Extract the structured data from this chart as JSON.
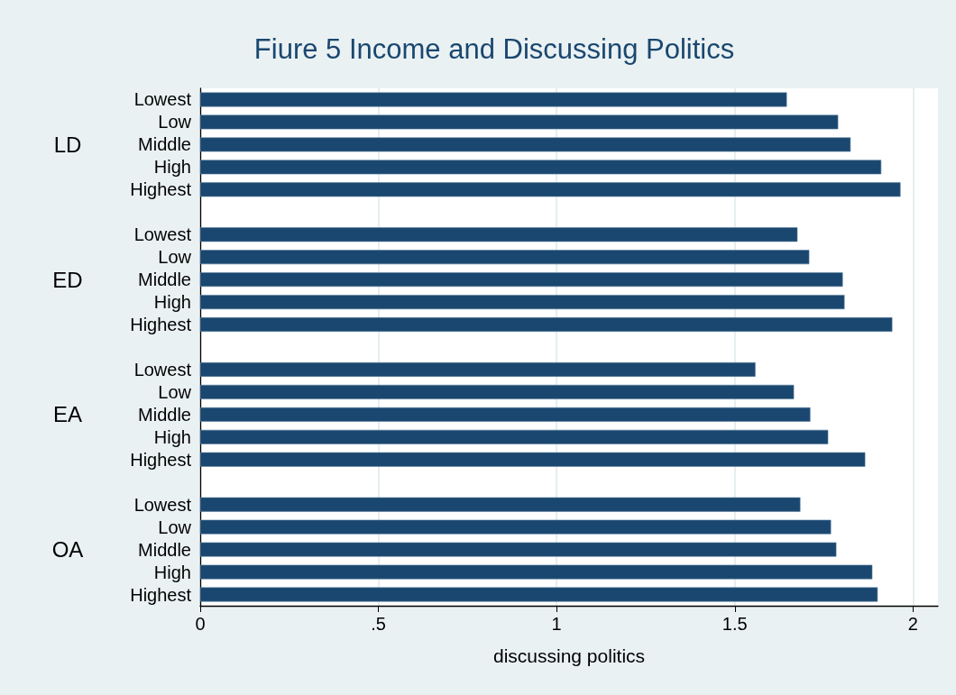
{
  "chart_data": {
    "type": "bar",
    "orientation": "horizontal",
    "title": "Fiure 5 Income and Discussing Politics",
    "xlabel": "discussing politics",
    "categories": [
      "Lowest",
      "Low",
      "Middle",
      "High",
      "Highest",
      null,
      "Lowest",
      "Low",
      "Middle",
      "High",
      "Highest",
      null,
      "Lowest",
      "Low",
      "Middle",
      "High",
      "Highest",
      null,
      "Lowest",
      "Low",
      "Middle",
      "High",
      "Highest"
    ],
    "values": [
      1.646,
      1.79,
      1.825,
      1.911,
      1.965,
      null,
      1.676,
      1.709,
      1.803,
      1.808,
      1.942,
      null,
      1.558,
      1.666,
      1.712,
      1.762,
      1.866,
      null,
      1.684,
      1.77,
      1.785,
      1.886,
      1.901
    ],
    "color": "#1a476f",
    "annotations": [
      "LD",
      "ED",
      "EA",
      "OA"
    ],
    "xlim": [
      0,
      2.07
    ],
    "xticks": [
      0,
      {
        "value": 0.5,
        "label": ".5"
      },
      1,
      1.5,
      2
    ],
    "grid": "x"
  }
}
